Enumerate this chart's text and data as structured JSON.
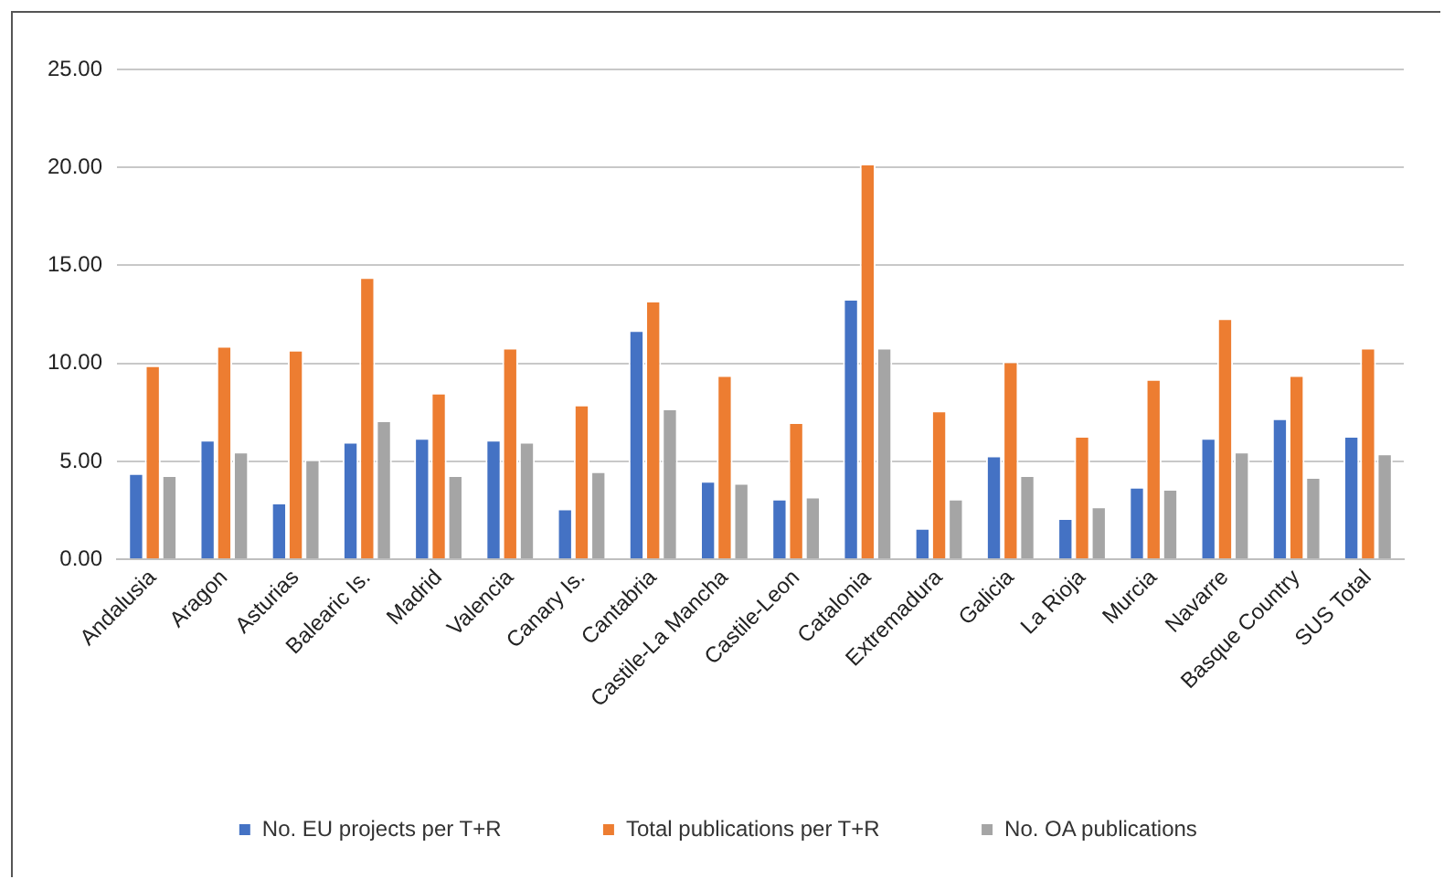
{
  "chart_data": {
    "type": "bar",
    "categories": [
      "Andalusia",
      "Aragon",
      "Asturias",
      "Balearic Is.",
      "Madrid",
      "Valencia",
      "Canary Is.",
      "Cantabria",
      "Castile-La Mancha",
      "Castile-Leon",
      "Catalonia",
      "Extremadura",
      "Galicia",
      "La Rioja",
      "Murcia",
      "Navarre",
      "Basque Country",
      "SUS Total"
    ],
    "series": [
      {
        "name": "No. EU projects per T+R",
        "color": "#4472c4",
        "values": [
          4.4,
          6.1,
          2.9,
          6.0,
          6.2,
          6.1,
          2.6,
          11.7,
          4.0,
          3.1,
          13.3,
          1.6,
          5.3,
          2.1,
          3.7,
          6.2,
          7.2,
          6.3
        ]
      },
      {
        "name": "Total publications per T+R",
        "color": "#ed7d31",
        "values": [
          9.9,
          10.9,
          10.7,
          14.4,
          8.5,
          10.8,
          7.9,
          13.2,
          9.4,
          7.0,
          20.2,
          7.6,
          10.1,
          6.3,
          9.2,
          12.3,
          9.4,
          10.8
        ]
      },
      {
        "name": "No. OA publications",
        "color": "#a5a5a5",
        "values": [
          4.3,
          5.5,
          5.1,
          7.1,
          4.3,
          6.0,
          4.5,
          7.7,
          3.9,
          3.2,
          10.8,
          3.1,
          4.3,
          2.7,
          3.6,
          5.5,
          4.2,
          5.4
        ]
      }
    ],
    "ylim": [
      0,
      25
    ],
    "yticks": [
      {
        "value": 0,
        "label": "0.00"
      },
      {
        "value": 5,
        "label": "5.00"
      },
      {
        "value": 10,
        "label": "10.00"
      },
      {
        "value": 15,
        "label": "15.00"
      },
      {
        "value": 20,
        "label": "20.00"
      },
      {
        "value": 25,
        "label": "25.00"
      }
    ],
    "grid": "y",
    "legend": "bottom"
  }
}
